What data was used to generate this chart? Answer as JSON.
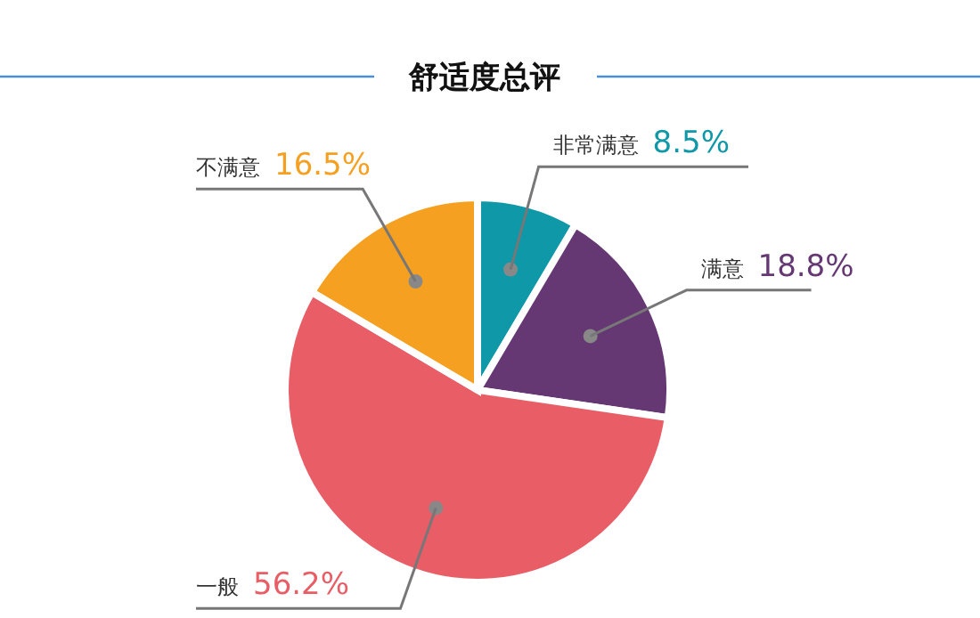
{
  "chart_data": {
    "type": "pie",
    "title": "舒适度总评",
    "categories": [
      "非常满意",
      "满意",
      "一般",
      "不满意"
    ],
    "values": [
      8.5,
      18.8,
      56.2,
      16.5
    ],
    "colors": [
      "#0e98a8",
      "#653874",
      "#e85d66",
      "#f5a020"
    ],
    "value_labels": [
      "8.5%",
      "18.8%",
      "56.2%",
      "16.5%"
    ]
  }
}
